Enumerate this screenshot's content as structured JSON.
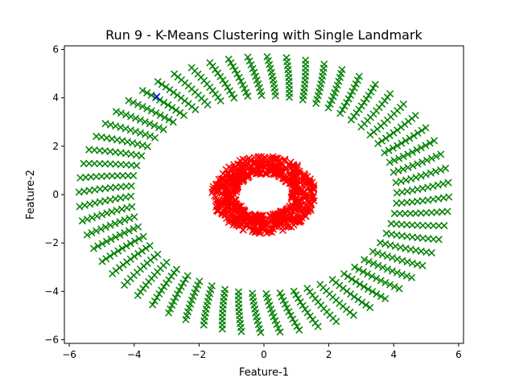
{
  "chart_data": {
    "type": "scatter",
    "title": "Run 9 - K-Means Clustering with Single Landmark",
    "xlabel": "Feature-1",
    "ylabel": "Feature-2",
    "xlim": [
      -6.15,
      6.15
    ],
    "ylim": [
      -6.15,
      6.15
    ],
    "xticks": [
      -6,
      -4,
      -2,
      0,
      2,
      4,
      6
    ],
    "yticks": [
      -6,
      -4,
      -2,
      0,
      2,
      4,
      6
    ],
    "xtick_labels": [
      "−6",
      "−4",
      "−2",
      "0",
      "2",
      "4",
      "6"
    ],
    "ytick_labels": [
      "−6",
      "−4",
      "−2",
      "0",
      "2",
      "4",
      "6"
    ],
    "grid": false,
    "marker": "x",
    "series": [
      {
        "color": "#008000",
        "description_shape": "outer ring of 60 radial spokes",
        "ring": {
          "r_inner": 4.1,
          "r_outer": 5.7,
          "spokes": 60,
          "points_per_spoke": 11,
          "spoke_tilt_deg": 4
        }
      },
      {
        "color": "#ff0000",
        "description_shape": "inner dense annulus",
        "ring": {
          "r_inner": 0.85,
          "r_outer": 1.6,
          "points": 700
        }
      },
      {
        "color": "#0000ff",
        "x": [
          -3.3
        ],
        "y": [
          4.05
        ]
      }
    ]
  }
}
